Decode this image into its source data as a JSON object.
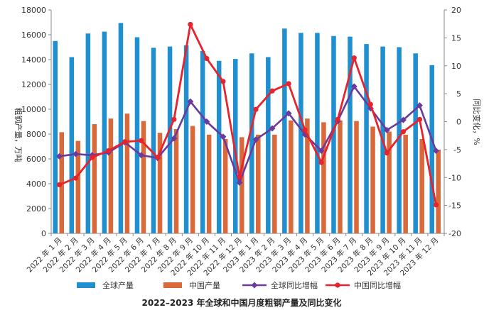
{
  "chart_data": {
    "type": "bar",
    "title": "2022–2023 年全球和中国月度粗钢产量及同比变化",
    "ylabel": "粗钢产量，万吨",
    "y2label": "同比变化，%",
    "ylim": [
      0,
      18000
    ],
    "y2lim": [
      -20,
      20
    ],
    "yticks": [
      "0",
      "2000",
      "4000",
      "6000",
      "8000",
      "10000",
      "12000",
      "14000",
      "16000",
      "18000"
    ],
    "y2ticks": [
      "20",
      "15",
      "10",
      "5",
      "0",
      "-5",
      "-10",
      "-15",
      "-20"
    ],
    "categories": [
      "2022 年 1 月",
      "2022 年 2 月",
      "2022 年 3 月",
      "2022 年 4 月",
      "2022 年 5 月",
      "2022 年 6 月",
      "2022 年 7 月",
      "2022 年 8 月",
      "2022 年 9 月",
      "2022 年 10 月",
      "2022 年 11 月",
      "2022 年 12 月",
      "2023 年 1 月",
      "2023 年 2 月",
      "2023 年 3 月",
      "2023 年 4 月",
      "2023 年 5 月",
      "2023 年 6 月",
      "2023 年 7 月",
      "2023 年 8 月",
      "2023 年 9 月",
      "2023 年 10 月",
      "2023 年 11 月",
      "2023 年 12 月"
    ],
    "grid": false,
    "legend_position": "bottom",
    "series": [
      {
        "name": "全球产量",
        "kind": "bar",
        "axis": "left",
        "color": "#1f8fd0",
        "values": [
          15500,
          14200,
          16100,
          16250,
          16950,
          15800,
          14950,
          15050,
          15150,
          14700,
          13900,
          14050,
          14500,
          14200,
          16500,
          16150,
          16150,
          15900,
          15850,
          15250,
          15050,
          15000,
          14500,
          13550
        ]
      },
      {
        "name": "中国产量",
        "kind": "bar",
        "axis": "left",
        "color": "#d9683a",
        "values": [
          8150,
          7450,
          8800,
          9250,
          9650,
          9050,
          8100,
          8400,
          8650,
          7950,
          7600,
          7750,
          7950,
          7950,
          9100,
          9250,
          8950,
          9100,
          9050,
          8600,
          8200,
          7950,
          7600,
          6750
        ]
      },
      {
        "name": "全球同比增幅",
        "kind": "line",
        "axis": "right",
        "color": "#6a3a9c",
        "values": [
          -6.2,
          -5.8,
          -6.0,
          -5.5,
          -3.7,
          -6.0,
          -6.5,
          -3.0,
          3.6,
          0.0,
          -2.7,
          -10.9,
          -3.2,
          -1.2,
          1.5,
          -2.3,
          -5.2,
          0.1,
          6.3,
          2.4,
          -1.5,
          0.3,
          2.9,
          -5.2
        ]
      },
      {
        "name": "中国同比增幅",
        "kind": "line",
        "axis": "right",
        "color": "#e8232c",
        "values": [
          -11.3,
          -10.1,
          -6.4,
          -5.2,
          -3.6,
          -3.4,
          -6.4,
          0.4,
          17.4,
          11.3,
          7.2,
          -9.9,
          2.2,
          5.5,
          6.8,
          -1.5,
          -7.3,
          0.4,
          11.4,
          3.1,
          -5.6,
          -1.8,
          0.4,
          -14.9
        ]
      }
    ]
  }
}
